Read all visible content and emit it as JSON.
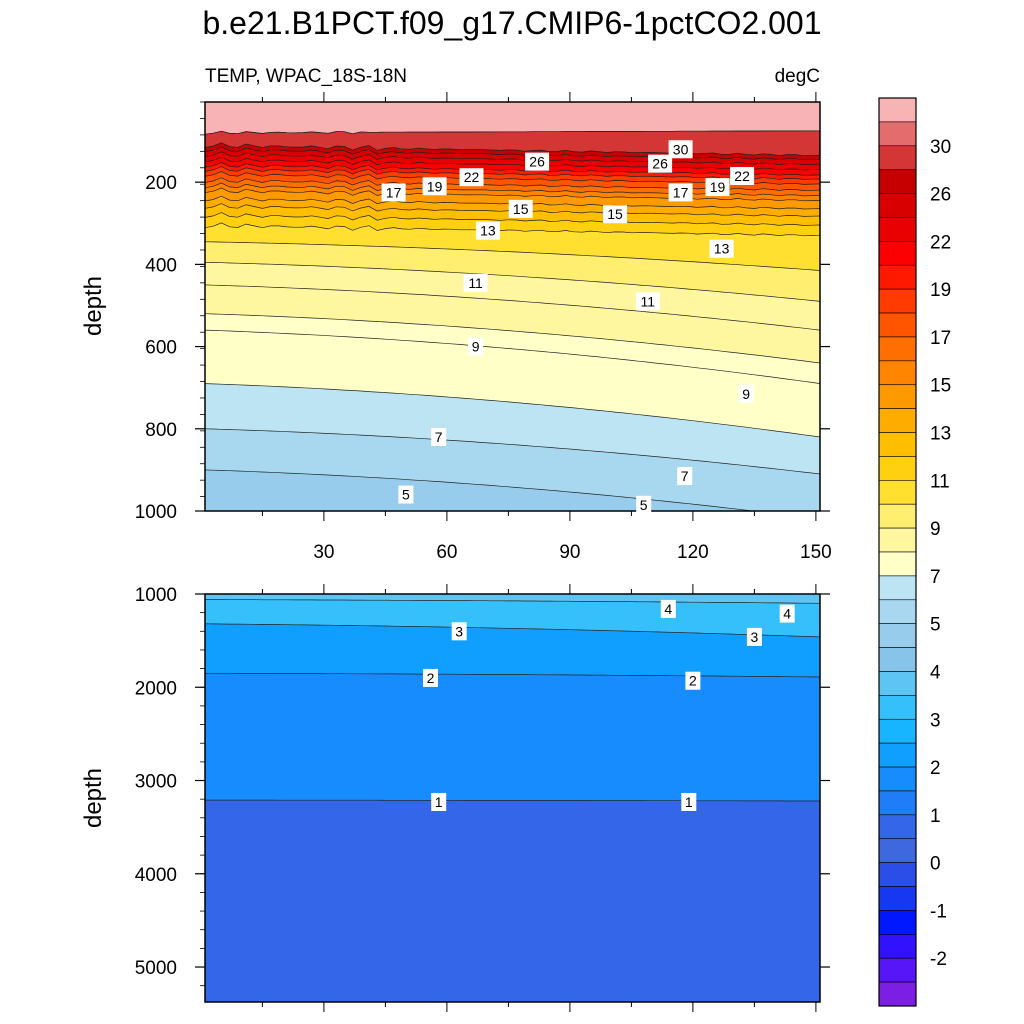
{
  "chart_data": {
    "type": "heatmap",
    "subtype": "filled-contour",
    "title": "b.e21.B1PCT.f09_g17.CMIP6-1pctCO2.001",
    "left_string": "TEMP, WPAC_18S-18N",
    "right_string": "degC",
    "x_tick_labels": [
      "30",
      "60",
      "90",
      "120",
      "150"
    ],
    "x_ticks": [
      30,
      60,
      90,
      120,
      150
    ],
    "xlim": [
      1,
      151
    ],
    "ylabel": "depth",
    "colorbar": {
      "labels": [
        "30",
        "26",
        "22",
        "19",
        "17",
        "15",
        "13",
        "11",
        "9",
        "7",
        "5",
        "4",
        "3",
        "2",
        "1",
        "0",
        "-1",
        "-2"
      ],
      "colors": [
        "#f8b4b4",
        "#e56c6c",
        "#d43535",
        "#c60000",
        "#d80000",
        "#e90000",
        "#fa0000",
        "#ff1900",
        "#ff3b00",
        "#ff5500",
        "#ff6e00",
        "#ff8400",
        "#ff9900",
        "#ffac00",
        "#ffbf00",
        "#ffd010",
        "#ffe030",
        "#ffee70",
        "#fff7a0",
        "#ffffc8",
        "#bde4f3",
        "#a8d8f0",
        "#97ccec",
        "#86c4ea",
        "#5ec4f3",
        "#35c0fb",
        "#17b5ff",
        "#109fff",
        "#178cff",
        "#1f7ef7",
        "#3366e8",
        "#3f68df",
        "#2b4ee9",
        "#1738f1",
        "#0018ff",
        "#3111ff",
        "#5616f7",
        "#7d1ee5"
      ]
    },
    "panels": [
      {
        "name": "upper",
        "ylim": [
          1000,
          5
        ],
        "y_ticks": [
          200,
          400,
          600,
          800,
          1000
        ],
        "y_tick_labels": [
          "200",
          "400",
          "600",
          "800",
          "1000"
        ],
        "contour_labels": [
          {
            "text": "30",
            "x": 117,
            "y": 120
          },
          {
            "text": "26",
            "x": 82,
            "y": 150
          },
          {
            "text": "26",
            "x": 112,
            "y": 155
          },
          {
            "text": "22",
            "x": 66,
            "y": 188
          },
          {
            "text": "22",
            "x": 132,
            "y": 185
          },
          {
            "text": "19",
            "x": 57,
            "y": 210
          },
          {
            "text": "19",
            "x": 126,
            "y": 212
          },
          {
            "text": "17",
            "x": 47,
            "y": 225
          },
          {
            "text": "17",
            "x": 117,
            "y": 225
          },
          {
            "text": "15",
            "x": 78,
            "y": 265
          },
          {
            "text": "15",
            "x": 101,
            "y": 278
          },
          {
            "text": "13",
            "x": 70,
            "y": 318
          },
          {
            "text": "13",
            "x": 127,
            "y": 362
          },
          {
            "text": "11",
            "x": 67,
            "y": 445
          },
          {
            "text": "11",
            "x": 109,
            "y": 490
          },
          {
            "text": "9",
            "x": 67,
            "y": 600
          },
          {
            "text": "9",
            "x": 133,
            "y": 715
          },
          {
            "text": "7",
            "x": 58,
            "y": 820
          },
          {
            "text": "7",
            "x": 118,
            "y": 915
          },
          {
            "text": "5",
            "x": 50,
            "y": 960
          },
          {
            "text": "5",
            "x": 108,
            "y": 985
          }
        ]
      },
      {
        "name": "lower",
        "ylim": [
          5375,
          1000
        ],
        "y_ticks": [
          1000,
          2000,
          3000,
          4000,
          5000
        ],
        "y_tick_labels": [
          "1000",
          "2000",
          "3000",
          "4000",
          "5000"
        ],
        "contour_labels": [
          {
            "text": "4",
            "x": 114,
            "y": 1160
          },
          {
            "text": "4",
            "x": 143,
            "y": 1210
          },
          {
            "text": "3",
            "x": 63,
            "y": 1400
          },
          {
            "text": "3",
            "x": 135,
            "y": 1460
          },
          {
            "text": "2",
            "x": 56,
            "y": 1900
          },
          {
            "text": "2",
            "x": 120,
            "y": 1930
          },
          {
            "text": "1",
            "x": 58,
            "y": 3230
          },
          {
            "text": "1",
            "x": 119,
            "y": 3230
          }
        ]
      }
    ]
  }
}
